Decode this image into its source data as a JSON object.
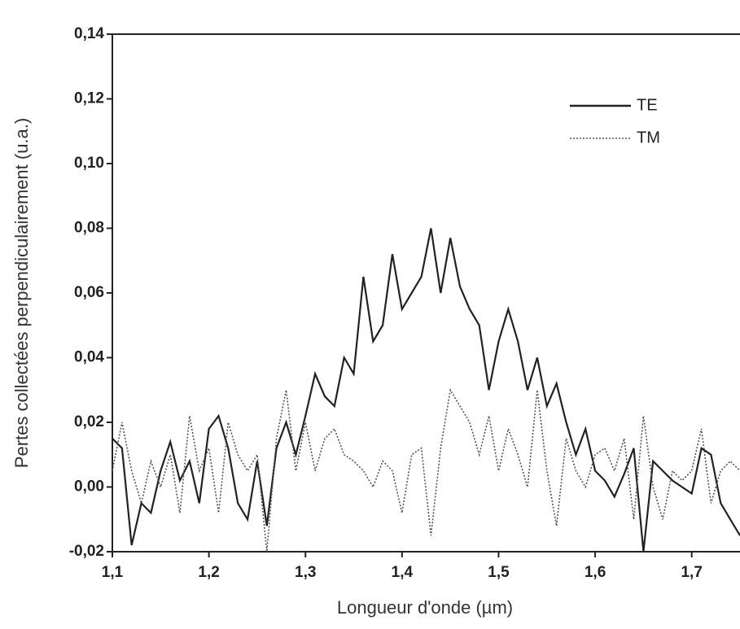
{
  "chart_data": {
    "type": "line",
    "xlabel": "Longueur d'onde (µm)",
    "ylabel": "Pertes collectées perpendiculairement (u.a.)",
    "xlim": [
      1.1,
      1.75
    ],
    "ylim": [
      -0.02,
      0.14
    ],
    "xticks": [
      {
        "value": 1.1,
        "label": "1,1"
      },
      {
        "value": 1.2,
        "label": "1,2"
      },
      {
        "value": 1.3,
        "label": "1,3"
      },
      {
        "value": 1.4,
        "label": "1,4"
      },
      {
        "value": 1.5,
        "label": "1,5"
      },
      {
        "value": 1.6,
        "label": "1,6"
      },
      {
        "value": 1.7,
        "label": "1,7"
      }
    ],
    "yticks": [
      {
        "value": -0.02,
        "label": "-0,02"
      },
      {
        "value": 0,
        "label": "0,00"
      },
      {
        "value": 0.02,
        "label": "0,02"
      },
      {
        "value": 0.04,
        "label": "0,04"
      },
      {
        "value": 0.06,
        "label": "0,06"
      },
      {
        "value": 0.08,
        "label": "0,08"
      },
      {
        "value": 0.1,
        "label": "0,10"
      },
      {
        "value": 0.12,
        "label": "0,12"
      },
      {
        "value": 0.14,
        "label": "0,14"
      }
    ],
    "legend": "upper right",
    "x": [
      1.1,
      1.11,
      1.12,
      1.13,
      1.14,
      1.15,
      1.16,
      1.17,
      1.18,
      1.19,
      1.2,
      1.21,
      1.22,
      1.23,
      1.24,
      1.25,
      1.26,
      1.27,
      1.28,
      1.29,
      1.3,
      1.31,
      1.32,
      1.33,
      1.34,
      1.35,
      1.36,
      1.37,
      1.38,
      1.39,
      1.4,
      1.41,
      1.42,
      1.43,
      1.44,
      1.45,
      1.46,
      1.47,
      1.48,
      1.49,
      1.5,
      1.51,
      1.52,
      1.53,
      1.54,
      1.55,
      1.56,
      1.57,
      1.58,
      1.59,
      1.6,
      1.61,
      1.62,
      1.63,
      1.64,
      1.65,
      1.66,
      1.67,
      1.68,
      1.69,
      1.7,
      1.71,
      1.72,
      1.73,
      1.74,
      1.75
    ],
    "series": [
      {
        "name": "TE",
        "color": "#222222",
        "linestyle": "solid",
        "values": [
          0.015,
          0.012,
          -0.018,
          -0.005,
          -0.008,
          0.005,
          0.014,
          0.002,
          0.008,
          -0.005,
          0.018,
          0.022,
          0.012,
          -0.005,
          -0.01,
          0.008,
          -0.012,
          0.012,
          0.02,
          0.01,
          0.022,
          0.035,
          0.028,
          0.025,
          0.04,
          0.035,
          0.065,
          0.045,
          0.05,
          0.072,
          0.055,
          0.06,
          0.065,
          0.08,
          0.06,
          0.077,
          0.062,
          0.055,
          0.05,
          0.03,
          0.045,
          0.055,
          0.045,
          0.03,
          0.04,
          0.025,
          0.032,
          0.02,
          0.01,
          0.018,
          0.005,
          0.002,
          -0.003,
          0.004,
          0.012,
          -0.02,
          0.008,
          0.005,
          0.002,
          0.0,
          -0.002,
          0.012,
          0.01,
          -0.005,
          -0.01,
          -0.015
        ]
      },
      {
        "name": "TM",
        "color": "#555555",
        "linestyle": "dotted",
        "values": [
          0.005,
          0.02,
          0.005,
          -0.005,
          0.008,
          0.0,
          0.01,
          -0.008,
          0.022,
          0.005,
          0.012,
          -0.008,
          0.02,
          0.01,
          0.005,
          0.01,
          -0.02,
          0.015,
          0.03,
          0.005,
          0.02,
          0.005,
          0.015,
          0.018,
          0.01,
          0.008,
          0.005,
          0.0,
          0.008,
          0.005,
          -0.008,
          0.01,
          0.012,
          -0.015,
          0.012,
          0.03,
          0.025,
          0.02,
          0.01,
          0.022,
          0.005,
          0.018,
          0.01,
          0.0,
          0.03,
          0.005,
          -0.012,
          0.015,
          0.005,
          0.0,
          0.01,
          0.012,
          0.005,
          0.015,
          -0.01,
          0.022,
          0.0,
          -0.01,
          0.005,
          0.002,
          0.005,
          0.018,
          -0.005,
          0.005,
          0.008,
          0.005
        ]
      }
    ]
  }
}
